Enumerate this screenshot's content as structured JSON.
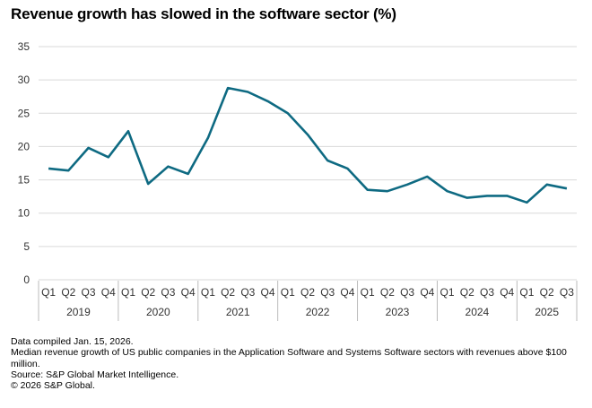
{
  "chart_data": {
    "type": "line",
    "title": "Revenue growth has slowed in the software sector (%)",
    "xlabel": "",
    "ylabel": "",
    "ylim": [
      0,
      35
    ],
    "yticks": [
      0,
      5,
      10,
      15,
      20,
      25,
      30,
      35
    ],
    "grid": true,
    "years": [
      {
        "label": "2019",
        "n": 4
      },
      {
        "label": "2020",
        "n": 4
      },
      {
        "label": "2021",
        "n": 4
      },
      {
        "label": "2022",
        "n": 4
      },
      {
        "label": "2023",
        "n": 4
      },
      {
        "label": "2024",
        "n": 4
      },
      {
        "label": "2025",
        "n": 3
      }
    ],
    "categories": [
      "Q1",
      "Q2",
      "Q3",
      "Q4",
      "Q1",
      "Q2",
      "Q3",
      "Q4",
      "Q1",
      "Q2",
      "Q3",
      "Q4",
      "Q1",
      "Q2",
      "Q3",
      "Q4",
      "Q1",
      "Q2",
      "Q3",
      "Q4",
      "Q1",
      "Q2",
      "Q3",
      "Q4",
      "Q1",
      "Q2",
      "Q3"
    ],
    "series": [
      {
        "name": "Median revenue growth",
        "color": "#0e6a82",
        "values": [
          16.7,
          16.4,
          19.8,
          18.4,
          22.3,
          14.4,
          17.0,
          15.9,
          21.3,
          28.8,
          28.2,
          26.8,
          25.0,
          21.8,
          17.9,
          16.7,
          13.5,
          13.3,
          14.3,
          15.5,
          13.3,
          12.3,
          12.6,
          12.6,
          11.6,
          14.3,
          13.7
        ]
      }
    ]
  },
  "notes": [
    "Data compiled Jan. 15, 2026.",
    "Median revenue growth of US public companies in the Application Software and Systems Software sectors with revenues above $100 million.",
    "Source: S&P Global Market Intelligence.",
    "© 2026 S&P Global."
  ]
}
